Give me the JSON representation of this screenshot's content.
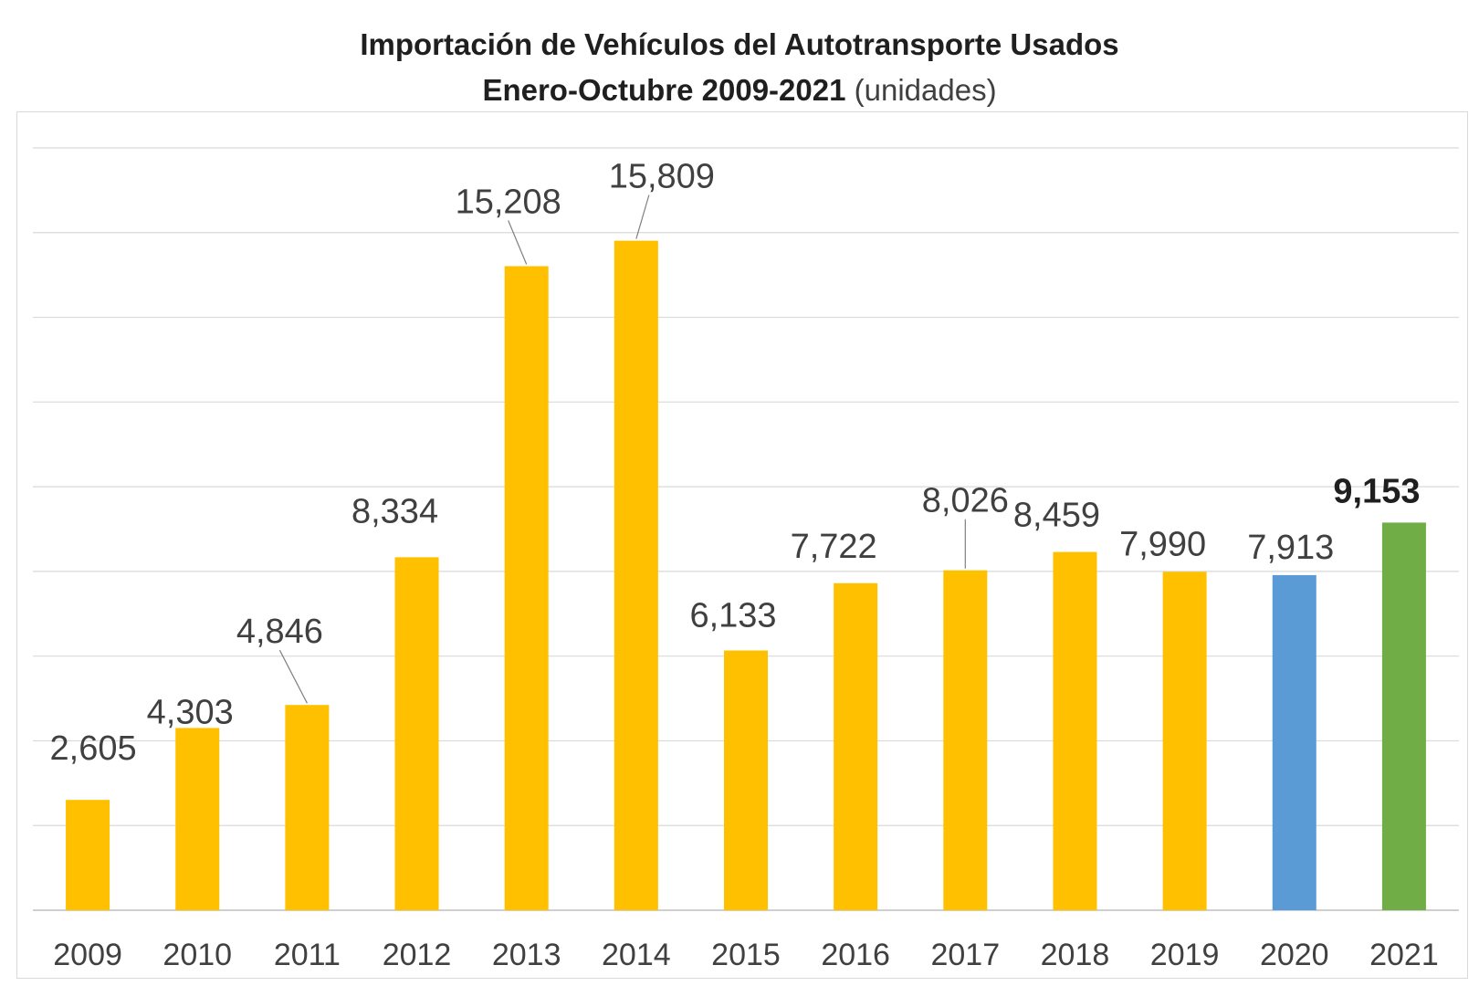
{
  "title": {
    "line1": "Importación de Vehículos del Autotransporte Usados",
    "line2": "Enero-Octubre 2009-2021",
    "unit": "(unidades)"
  },
  "chart_data": {
    "type": "bar",
    "title": "Importación de Vehículos del Autotransporte Usados Enero-Octubre 2009-2021 (unidades)",
    "xlabel": "",
    "ylabel": "",
    "ylim": [
      0,
      18000
    ],
    "grid": true,
    "categories": [
      "2009",
      "2010",
      "2011",
      "2012",
      "2013",
      "2014",
      "2015",
      "2016",
      "2017",
      "2018",
      "2019",
      "2020",
      "2021"
    ],
    "values": [
      2605,
      4303,
      4846,
      8334,
      15208,
      15809,
      6133,
      7722,
      8026,
      8459,
      7990,
      7913,
      9153
    ],
    "labels": [
      "2,605",
      "4,303",
      "4,846",
      "8,334",
      "15,208",
      "15,809",
      "6,133",
      "7,722",
      "8,026",
      "8,459",
      "7,990",
      "7,913",
      "9,153"
    ],
    "colors": [
      "#FFC000",
      "#FFC000",
      "#FFC000",
      "#FFC000",
      "#FFC000",
      "#FFC000",
      "#FFC000",
      "#FFC000",
      "#FFC000",
      "#FFC000",
      "#FFC000",
      "#5B9BD5",
      "#70AD47"
    ],
    "bold_labels": [
      false,
      false,
      false,
      false,
      false,
      false,
      false,
      false,
      false,
      false,
      false,
      false,
      true
    ]
  }
}
